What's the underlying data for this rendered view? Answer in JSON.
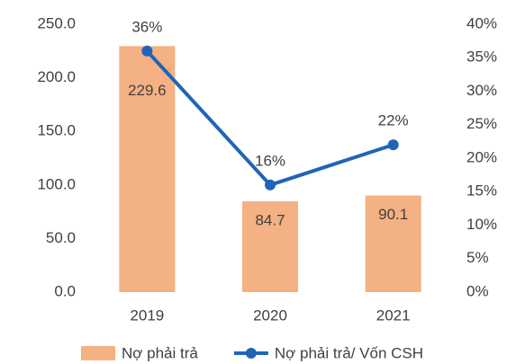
{
  "chart_data": {
    "type": "bar",
    "categories": [
      "2019",
      "2020",
      "2021"
    ],
    "series": [
      {
        "name": "Nợ phải trả",
        "color": "#f4b183",
        "type": "bar",
        "values": [
          229.6,
          84.7,
          90.1
        ]
      },
      {
        "name": "Nợ phải trả/ Vốn CSH",
        "color": "#2064b8",
        "type": "line",
        "axis": "y2",
        "values": [
          36,
          16,
          22
        ],
        "value_labels": [
          "36%",
          "16%",
          "22%"
        ]
      }
    ],
    "ylim": [
      0,
      250
    ],
    "yticks": [
      {
        "value": 0,
        "label": "0.0"
      },
      {
        "value": 50,
        "label": "50.0"
      },
      {
        "value": 100,
        "label": "100.0"
      },
      {
        "value": 150,
        "label": "150.0"
      },
      {
        "value": 200,
        "label": "200.0"
      },
      {
        "value": 250,
        "label": "250.0"
      }
    ],
    "y2lim": [
      0,
      40
    ],
    "y2ticks": [
      {
        "value": 0,
        "label": "0%"
      },
      {
        "value": 5,
        "label": "5%"
      },
      {
        "value": 10,
        "label": "10%"
      },
      {
        "value": 15,
        "label": "15%"
      },
      {
        "value": 20,
        "label": "20%"
      },
      {
        "value": 25,
        "label": "25%"
      },
      {
        "value": 30,
        "label": "30%"
      },
      {
        "value": 35,
        "label": "35%"
      },
      {
        "value": 40,
        "label": "40%"
      }
    ],
    "grid": false
  }
}
